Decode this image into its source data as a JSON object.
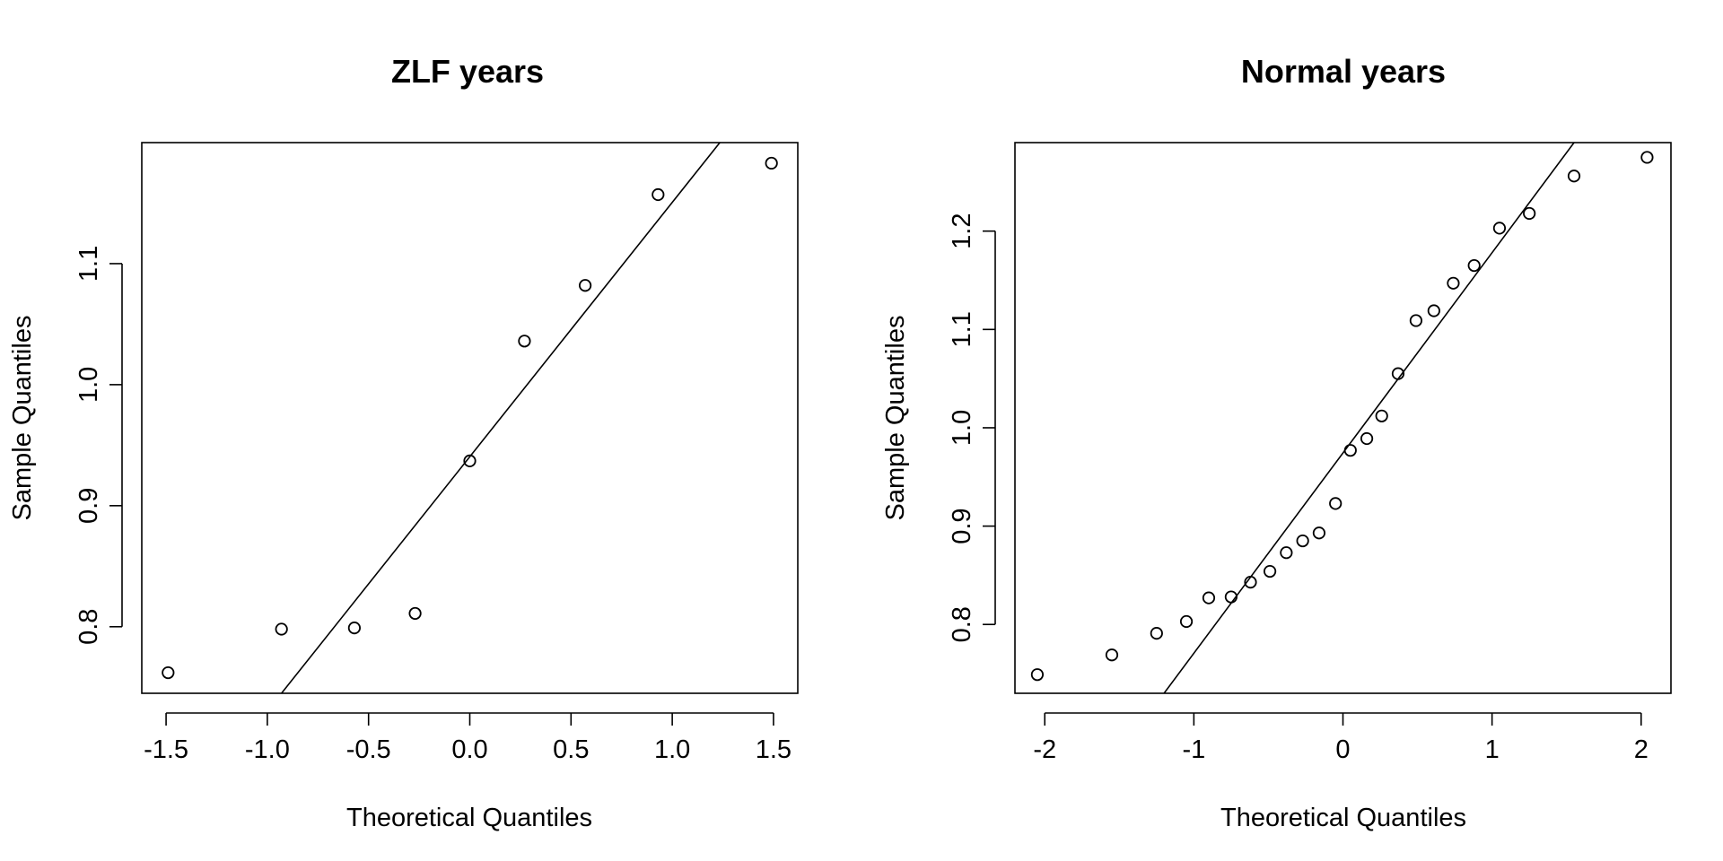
{
  "chart_data": [
    {
      "type": "scatter",
      "title": "ZLF years",
      "xlabel": "Theoretical Quantiles",
      "ylabel": "Sample Quantiles",
      "xlim": [
        -1.62,
        1.62
      ],
      "ylim": [
        0.745,
        1.2
      ],
      "xticks": [
        -1.5,
        -1.0,
        -0.5,
        0.0,
        0.5,
        1.0,
        1.5
      ],
      "xtick_labels": [
        "-1.5",
        "-1.0",
        "-0.5",
        "0.0",
        "0.5",
        "1.0",
        "1.5"
      ],
      "yticks": [
        0.8,
        0.9,
        1.0,
        1.1
      ],
      "ytick_labels": [
        "0.8",
        "0.9",
        "1.0",
        "1.1"
      ],
      "grid": false,
      "points": [
        [
          -1.49,
          0.762
        ],
        [
          -0.93,
          0.798
        ],
        [
          -0.57,
          0.799
        ],
        [
          -0.27,
          0.811
        ],
        [
          0.0,
          0.937
        ],
        [
          0.27,
          1.036
        ],
        [
          0.57,
          1.082
        ],
        [
          0.93,
          1.157
        ],
        [
          1.49,
          1.183
        ]
      ],
      "reference_line": [
        [
          -0.93,
          0.745
        ],
        [
          1.235,
          1.2
        ]
      ]
    },
    {
      "type": "scatter",
      "title": "Normal years",
      "xlabel": "Theoretical Quantiles",
      "ylabel": "Sample Quantiles",
      "xlim": [
        -2.2,
        2.2
      ],
      "ylim": [
        0.73,
        1.29
      ],
      "xticks": [
        -2,
        -1,
        0,
        1,
        2
      ],
      "xtick_labels": [
        "-2",
        "-1",
        "0",
        "1",
        "2"
      ],
      "yticks": [
        0.8,
        0.9,
        1.0,
        1.1,
        1.2
      ],
      "ytick_labels": [
        "0.8",
        "0.9",
        "1.0",
        "1.1",
        "1.2"
      ],
      "grid": false,
      "points": [
        [
          -2.05,
          0.749
        ],
        [
          -1.55,
          0.769
        ],
        [
          -1.25,
          0.791
        ],
        [
          -1.05,
          0.803
        ],
        [
          -0.9,
          0.827
        ],
        [
          -0.75,
          0.828
        ],
        [
          -0.62,
          0.843
        ],
        [
          -0.49,
          0.854
        ],
        [
          -0.38,
          0.873
        ],
        [
          -0.27,
          0.885
        ],
        [
          -0.16,
          0.893
        ],
        [
          -0.05,
          0.923
        ],
        [
          0.05,
          0.977
        ],
        [
          0.16,
          0.989
        ],
        [
          0.26,
          1.012
        ],
        [
          0.37,
          1.055
        ],
        [
          0.49,
          1.109
        ],
        [
          0.61,
          1.119
        ],
        [
          0.74,
          1.147
        ],
        [
          0.88,
          1.165
        ],
        [
          1.05,
          1.203
        ],
        [
          1.25,
          1.218
        ],
        [
          1.55,
          1.256
        ],
        [
          2.04,
          1.275
        ]
      ],
      "reference_line": [
        [
          -1.2,
          0.73
        ],
        [
          1.55,
          1.29
        ]
      ]
    }
  ]
}
